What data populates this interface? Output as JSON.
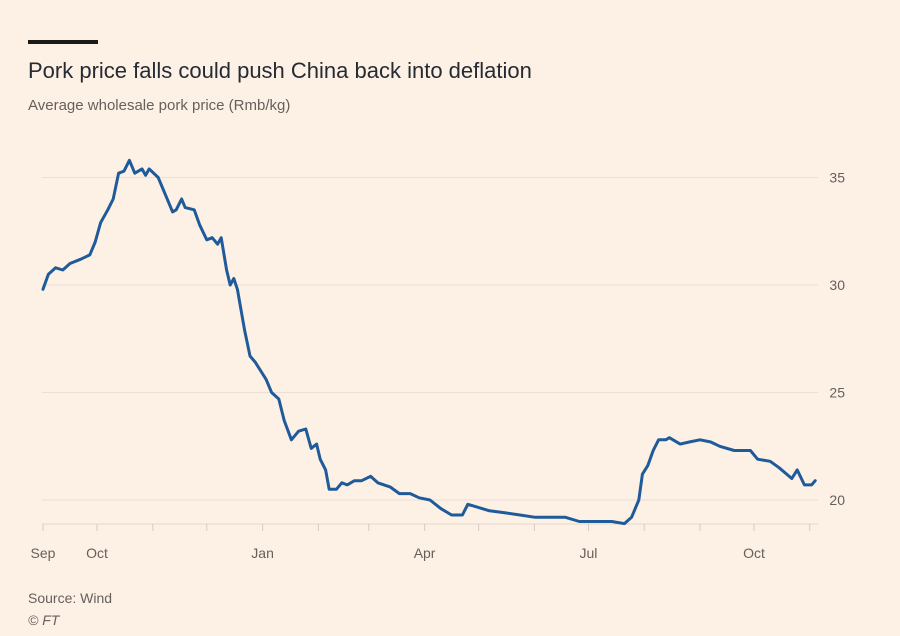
{
  "header": {
    "title": "Pork price falls could push China back into deflation",
    "subtitle": "Average wholesale pork price (Rmb/kg)"
  },
  "footer": {
    "source": "Source: Wind",
    "credit": "© FT"
  },
  "chart_data": {
    "type": "line",
    "title": "Pork price falls could push China back into deflation",
    "subtitle": "Average wholesale pork price (Rmb/kg)",
    "xlabel": "",
    "ylabel": "",
    "ylim": [
      18.8,
      36
    ],
    "yticks": [
      20,
      25,
      30,
      35
    ],
    "y_axis_side": "right",
    "grid": true,
    "xticks": [
      {
        "date": "2022-09-01",
        "label": "Sep"
      },
      {
        "date": "2022-10-01",
        "label": "Oct"
      },
      {
        "date": "2022-11-01",
        "label": ""
      },
      {
        "date": "2022-12-01",
        "label": ""
      },
      {
        "date": "2023-01-01",
        "label": "Jan"
      },
      {
        "date": "2023-02-01",
        "label": ""
      },
      {
        "date": "2023-03-01",
        "label": ""
      },
      {
        "date": "2023-04-01",
        "label": "Apr"
      },
      {
        "date": "2023-05-01",
        "label": ""
      },
      {
        "date": "2023-06-01",
        "label": ""
      },
      {
        "date": "2023-07-01",
        "label": "Jul"
      },
      {
        "date": "2023-08-01",
        "label": ""
      },
      {
        "date": "2023-09-01",
        "label": ""
      },
      {
        "date": "2023-10-01",
        "label": "Oct"
      },
      {
        "date": "2023-11-01",
        "label": ""
      }
    ],
    "color": "#1f5a9a",
    "series": [
      {
        "x": [
          "2022-09-01",
          "2022-09-04",
          "2022-09-08",
          "2022-09-12",
          "2022-09-16",
          "2022-09-22",
          "2022-09-27",
          "2022-09-30",
          "2022-10-03",
          "2022-10-07",
          "2022-10-10",
          "2022-10-13",
          "2022-10-16",
          "2022-10-19",
          "2022-10-22",
          "2022-10-26",
          "2022-10-28",
          "2022-10-30",
          "2022-11-04",
          "2022-11-08",
          "2022-11-12",
          "2022-11-14",
          "2022-11-17",
          "2022-11-19",
          "2022-11-24",
          "2022-11-27",
          "2022-12-01",
          "2022-12-04",
          "2022-12-07",
          "2022-12-09",
          "2022-12-12",
          "2022-12-14",
          "2022-12-16",
          "2022-12-18",
          "2022-12-22",
          "2022-12-25",
          "2022-12-28",
          "2022-12-31",
          "2023-01-03",
          "2023-01-06",
          "2023-01-10",
          "2023-01-13",
          "2023-01-17",
          "2023-01-21",
          "2023-01-25",
          "2023-01-28",
          "2023-01-31",
          "2023-02-02",
          "2023-02-05",
          "2023-02-07",
          "2023-02-11",
          "2023-02-14",
          "2023-02-17",
          "2023-02-21",
          "2023-02-25",
          "2023-03-02",
          "2023-03-06",
          "2023-03-13",
          "2023-03-18",
          "2023-03-24",
          "2023-03-29",
          "2023-04-04",
          "2023-04-10",
          "2023-04-16",
          "2023-04-22",
          "2023-04-25",
          "2023-04-29",
          "2023-05-07",
          "2023-05-16",
          "2023-05-24",
          "2023-06-01",
          "2023-06-10",
          "2023-06-18",
          "2023-06-26",
          "2023-07-05",
          "2023-07-14",
          "2023-07-21",
          "2023-07-25",
          "2023-07-29",
          "2023-07-31",
          "2023-08-03",
          "2023-08-06",
          "2023-08-09",
          "2023-08-13",
          "2023-08-15",
          "2023-08-21",
          "2023-08-26",
          "2023-09-01",
          "2023-09-07",
          "2023-09-12",
          "2023-09-20",
          "2023-09-29",
          "2023-10-03",
          "2023-10-10",
          "2023-10-15",
          "2023-10-22",
          "2023-10-25",
          "2023-10-29",
          "2023-11-02",
          "2023-11-04"
        ],
        "y": [
          29.8,
          30.5,
          30.8,
          30.7,
          31.0,
          31.2,
          31.4,
          32.0,
          32.9,
          33.5,
          34.0,
          35.2,
          35.3,
          35.8,
          35.2,
          35.4,
          35.1,
          35.4,
          35.0,
          34.2,
          33.4,
          33.5,
          34.0,
          33.6,
          33.5,
          32.8,
          32.1,
          32.2,
          31.9,
          32.2,
          30.7,
          30.0,
          30.3,
          29.8,
          27.9,
          26.7,
          26.4,
          26.0,
          25.6,
          25.0,
          24.7,
          23.7,
          22.8,
          23.2,
          23.3,
          22.4,
          22.6,
          21.9,
          21.4,
          20.5,
          20.5,
          20.8,
          20.7,
          20.9,
          20.9,
          21.1,
          20.8,
          20.6,
          20.3,
          20.3,
          20.1,
          20.0,
          19.6,
          19.3,
          19.3,
          19.8,
          19.7,
          19.5,
          19.4,
          19.3,
          19.2,
          19.2,
          19.2,
          19.0,
          19.0,
          19.0,
          18.9,
          19.2,
          20.0,
          21.2,
          21.6,
          22.3,
          22.8,
          22.8,
          22.9,
          22.6,
          22.7,
          22.8,
          22.7,
          22.5,
          22.3,
          22.3,
          21.9,
          21.8,
          21.5,
          21.0,
          21.4,
          20.7,
          20.7,
          20.9
        ]
      }
    ]
  }
}
